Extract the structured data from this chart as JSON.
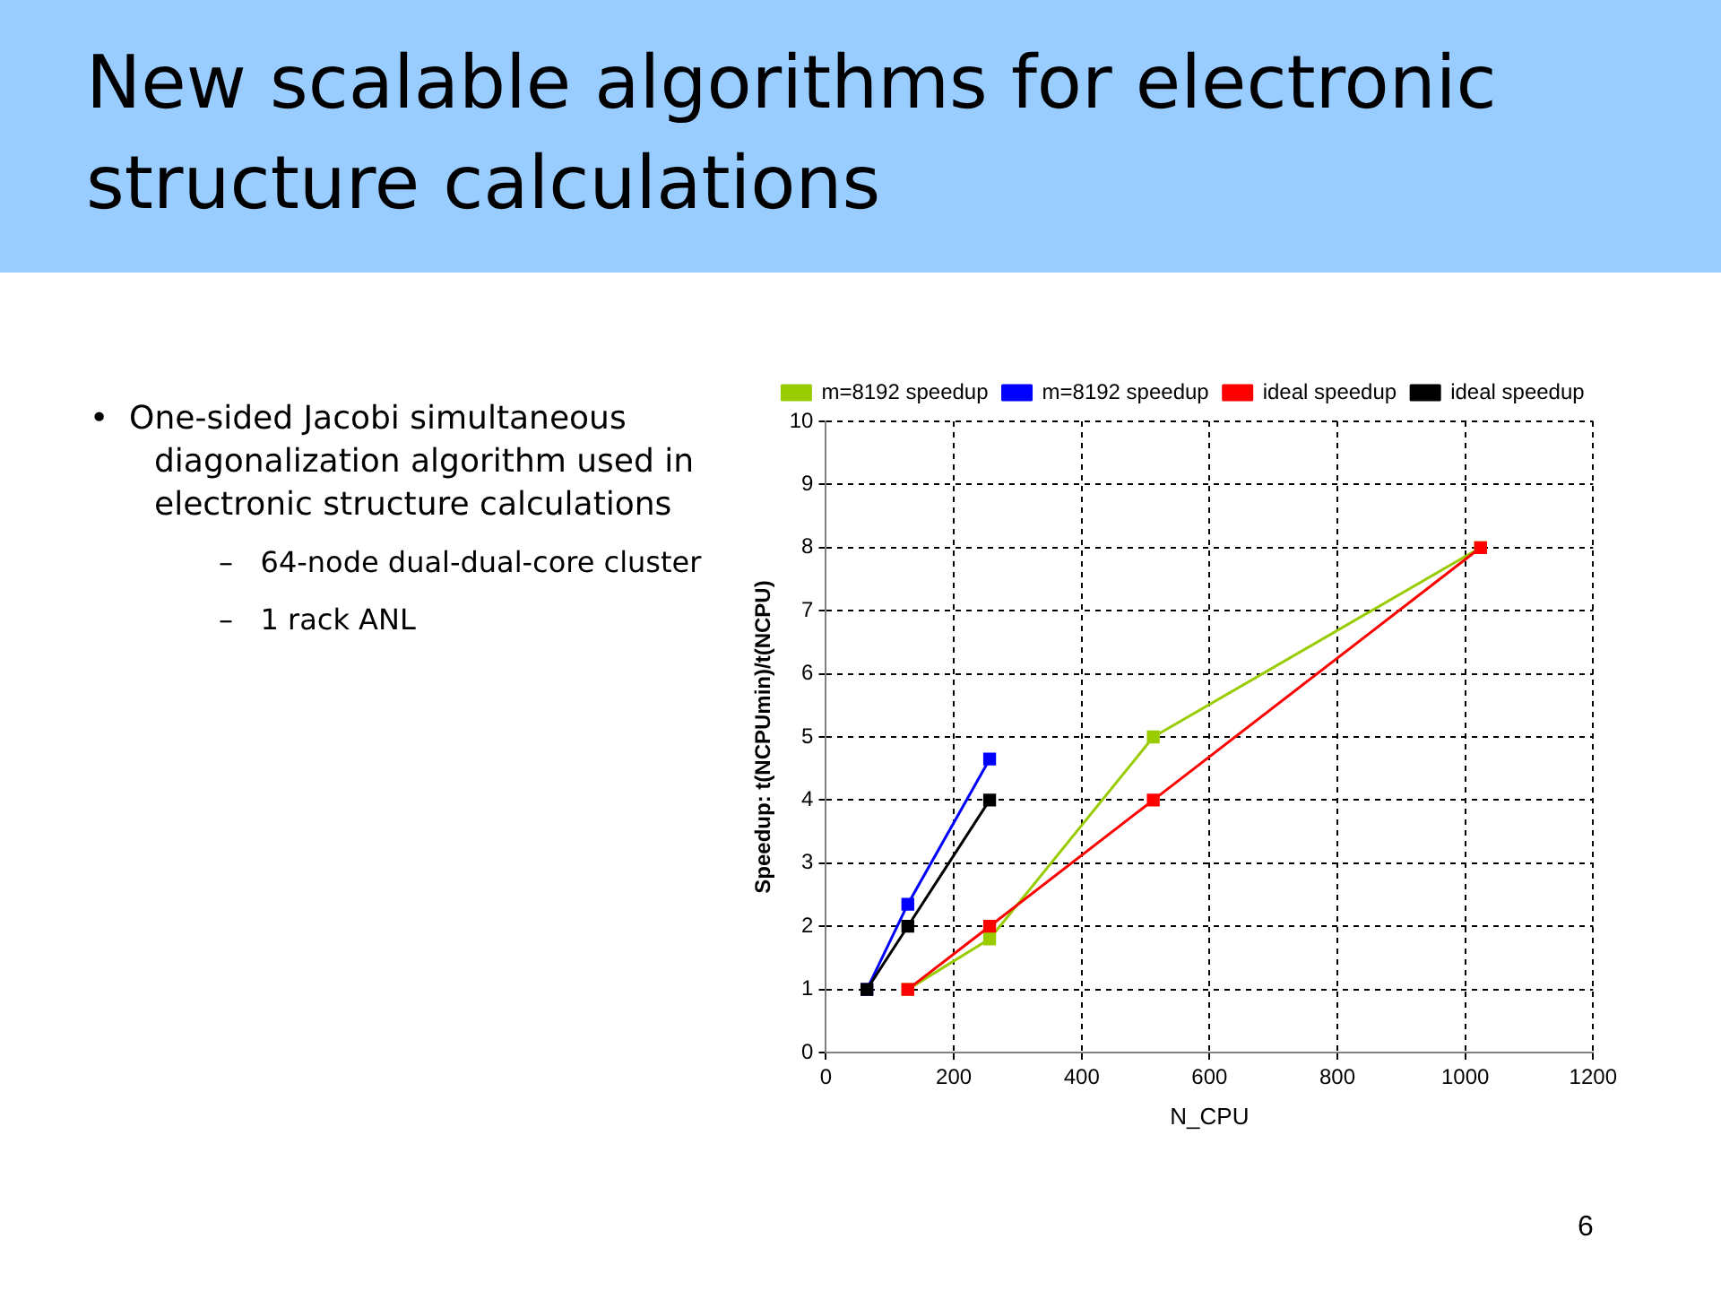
{
  "chart_data": {
    "type": "line",
    "title": "New scalable algorithms for electronic structure calculations",
    "xlabel": "N_CPU",
    "ylabel": "Speedup: t(NCPUmin)/t(NCPU)",
    "annotations": [
      "•  One-sided Jacobi simultaneous diagonalization algorithm used in electronic structure calculations",
      "–   64-node dual-dual-core cluster",
      "–   1 rack ANL",
      "6"
    ],
    "series": [
      {
        "name": "m=8192 speedup",
        "color": "#99cc00",
        "x": [
          128,
          256,
          512,
          1024
        ],
        "values": [
          1,
          1.8,
          5,
          8
        ]
      },
      {
        "name": "m=8192 speedup",
        "color": "#0000ff",
        "x": [
          64,
          128,
          256
        ],
        "values": [
          1,
          2.35,
          4.65
        ]
      },
      {
        "name": "ideal speedup",
        "color": "#ff0000",
        "x": [
          128,
          256,
          512,
          1024
        ],
        "values": [
          1,
          2,
          4,
          8
        ]
      },
      {
        "name": "ideal speedup",
        "color": "#000000",
        "x": [
          64,
          128,
          256
        ],
        "values": [
          1,
          2,
          4
        ]
      }
    ],
    "xlim": [
      0,
      1200
    ],
    "xticks": [
      0,
      200,
      400,
      600,
      800,
      1000,
      1200
    ],
    "ylim": [
      0,
      10
    ],
    "yticks": [
      0,
      1,
      2,
      3,
      4,
      5,
      6,
      7,
      8,
      9,
      10
    ],
    "grid": true,
    "legend": "top",
    "marker": "square",
    "line_style": "solid"
  }
}
